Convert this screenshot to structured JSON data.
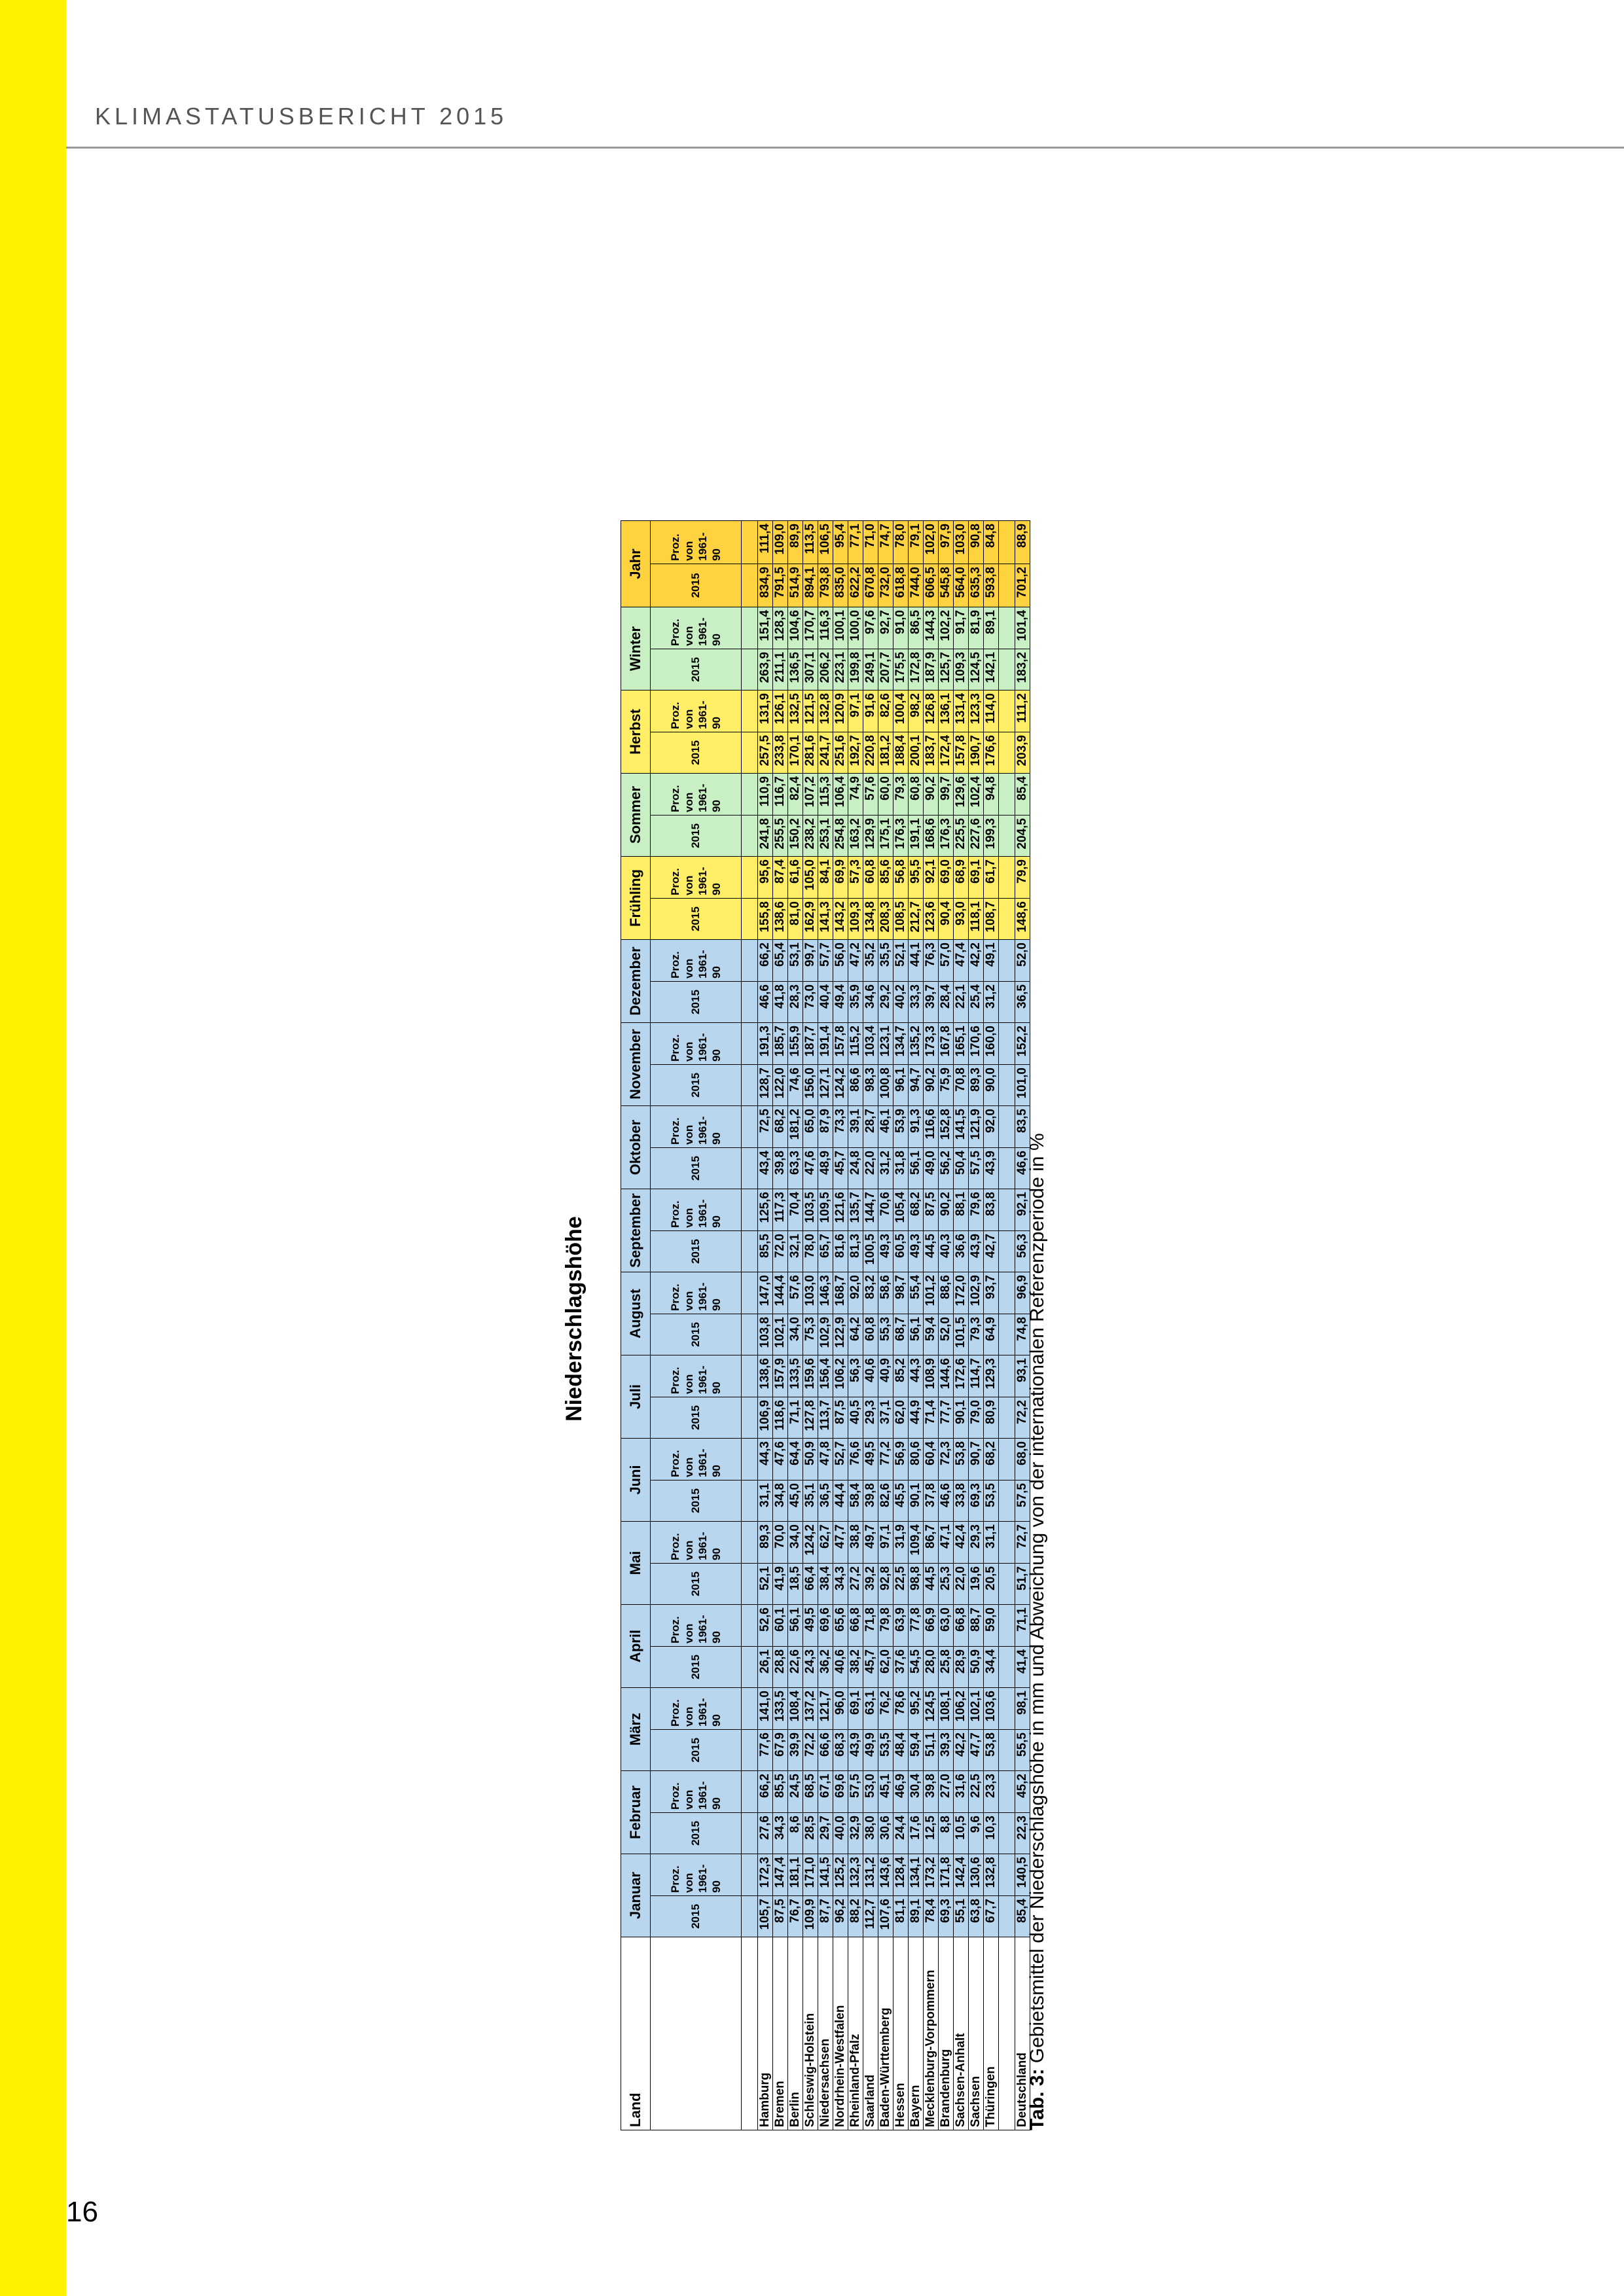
{
  "page": {
    "header": "KLIMASTATUSBERICHT 2015",
    "page_number": "16"
  },
  "title": "Niederschlagshöhe",
  "table": {
    "land_label": "Land",
    "col_2015": "2015",
    "col_proz": "Proz. von 1961-90",
    "months": [
      "Januar",
      "Februar",
      "März",
      "April",
      "Mai",
      "Juni",
      "Juli",
      "August",
      "September",
      "Oktober",
      "November",
      "Dezember"
    ],
    "seasons": [
      "Frühling",
      "Sommer",
      "Herbst",
      "Winter"
    ],
    "year": "Jahr",
    "rows": [
      {
        "land": "Hamburg",
        "values": [
          "105,7",
          "172,3",
          "27,6",
          "66,2",
          "77,6",
          "141,0",
          "26,1",
          "52,6",
          "52,1",
          "89,3",
          "31,1",
          "44,3",
          "106,9",
          "138,6",
          "103,8",
          "147,0",
          "85,5",
          "125,6",
          "43,4",
          "72,5",
          "128,7",
          "191,3",
          "46,6",
          "66,2",
          "155,8",
          "95,6",
          "241,8",
          "110,9",
          "257,5",
          "131,9",
          "263,9",
          "151,4",
          "834,9",
          "111,4"
        ]
      },
      {
        "land": "Bremen",
        "values": [
          "87,5",
          "147,4",
          "34,3",
          "85,5",
          "67,9",
          "133,5",
          "28,8",
          "60,1",
          "41,9",
          "70,0",
          "34,8",
          "47,6",
          "118,6",
          "157,9",
          "102,1",
          "144,4",
          "72,0",
          "117,3",
          "39,8",
          "68,2",
          "122,0",
          "185,7",
          "41,8",
          "65,4",
          "138,6",
          "87,4",
          "255,5",
          "116,7",
          "233,8",
          "126,1",
          "211,1",
          "128,3",
          "791,5",
          "109,0"
        ]
      },
      {
        "land": "Berlin",
        "values": [
          "76,7",
          "181,1",
          "8,6",
          "24,5",
          "39,9",
          "108,4",
          "22,6",
          "56,1",
          "18,5",
          "34,0",
          "45,0",
          "64,4",
          "71,1",
          "133,5",
          "34,0",
          "57,6",
          "32,1",
          "70,4",
          "63,3",
          "181,2",
          "74,6",
          "155,9",
          "28,3",
          "53,1",
          "81,0",
          "61,6",
          "150,2",
          "82,4",
          "170,1",
          "132,5",
          "136,5",
          "104,6",
          "514,9",
          "89,9"
        ]
      },
      {
        "land": "Schleswig-Holstein",
        "values": [
          "109,9",
          "171,0",
          "28,5",
          "68,5",
          "72,2",
          "137,2",
          "24,3",
          "49,5",
          "66,4",
          "124,2",
          "35,1",
          "50,9",
          "127,8",
          "159,6",
          "75,3",
          "103,0",
          "78,0",
          "103,5",
          "47,6",
          "65,0",
          "156,0",
          "187,7",
          "73,0",
          "99,7",
          "162,9",
          "105,0",
          "238,2",
          "107,2",
          "281,6",
          "121,5",
          "307,1",
          "170,7",
          "894,1",
          "113,5"
        ]
      },
      {
        "land": "Niedersachsen",
        "values": [
          "87,7",
          "141,5",
          "29,7",
          "67,1",
          "66,6",
          "121,7",
          "36,2",
          "69,6",
          "38,4",
          "62,7",
          "36,5",
          "47,8",
          "113,7",
          "156,4",
          "102,9",
          "146,3",
          "65,7",
          "109,5",
          "48,9",
          "87,9",
          "127,1",
          "191,4",
          "40,4",
          "57,7",
          "141,3",
          "84,1",
          "253,1",
          "115,3",
          "241,7",
          "132,8",
          "206,2",
          "116,3",
          "793,8",
          "106,5"
        ]
      },
      {
        "land": "Nordrhein-Westfalen",
        "values": [
          "96,2",
          "125,2",
          "40,0",
          "69,6",
          "68,3",
          "96,0",
          "40,6",
          "65,6",
          "34,3",
          "47,7",
          "44,4",
          "52,7",
          "87,5",
          "106,2",
          "122,9",
          "168,7",
          "81,6",
          "121,6",
          "45,7",
          "73,3",
          "124,2",
          "157,8",
          "49,4",
          "56,0",
          "143,2",
          "69,9",
          "254,8",
          "106,4",
          "251,6",
          "120,9",
          "223,1",
          "100,1",
          "835,0",
          "95,4"
        ]
      },
      {
        "land": "Rheinland-Pfalz",
        "values": [
          "88,2",
          "132,3",
          "32,9",
          "57,5",
          "43,9",
          "69,1",
          "38,2",
          "66,8",
          "27,2",
          "38,8",
          "58,4",
          "76,6",
          "40,5",
          "56,3",
          "64,2",
          "92,0",
          "81,3",
          "135,7",
          "24,8",
          "39,1",
          "86,6",
          "115,2",
          "35,9",
          "47,2",
          "109,3",
          "57,3",
          "163,2",
          "74,9",
          "192,7",
          "97,1",
          "199,8",
          "100,0",
          "622,2",
          "77,1"
        ]
      },
      {
        "land": "Saarland",
        "values": [
          "112,7",
          "131,2",
          "38,0",
          "53,0",
          "49,9",
          "63,1",
          "45,7",
          "71,8",
          "39,2",
          "49,7",
          "39,8",
          "49,5",
          "29,3",
          "40,6",
          "60,8",
          "83,2",
          "100,5",
          "144,7",
          "22,0",
          "28,7",
          "98,3",
          "103,4",
          "34,6",
          "35,2",
          "134,8",
          "60,8",
          "129,9",
          "57,6",
          "220,8",
          "91,6",
          "249,1",
          "97,6",
          "670,8",
          "71,0"
        ]
      },
      {
        "land": "Baden-Württemberg",
        "values": [
          "107,6",
          "143,6",
          "30,6",
          "45,1",
          "53,5",
          "76,2",
          "62,0",
          "79,8",
          "92,8",
          "97,1",
          "82,6",
          "77,2",
          "37,1",
          "40,9",
          "55,3",
          "58,6",
          "49,3",
          "70,6",
          "31,2",
          "46,1",
          "100,8",
          "123,1",
          "29,2",
          "35,5",
          "208,3",
          "85,6",
          "175,1",
          "60,0",
          "181,2",
          "82,6",
          "207,7",
          "92,7",
          "732,0",
          "74,7"
        ]
      },
      {
        "land": "Hessen",
        "values": [
          "81,1",
          "128,4",
          "24,4",
          "46,9",
          "48,4",
          "78,6",
          "37,6",
          "63,9",
          "22,5",
          "31,9",
          "45,5",
          "56,9",
          "62,0",
          "85,2",
          "68,7",
          "98,7",
          "60,5",
          "105,4",
          "31,8",
          "53,9",
          "96,1",
          "134,7",
          "40,2",
          "52,1",
          "108,5",
          "56,8",
          "176,3",
          "79,3",
          "188,4",
          "100,4",
          "175,5",
          "91,0",
          "618,8",
          "78,0"
        ]
      },
      {
        "land": "Bayern",
        "values": [
          "89,1",
          "134,1",
          "17,6",
          "30,4",
          "59,4",
          "95,2",
          "54,5",
          "77,8",
          "98,8",
          "109,4",
          "90,1",
          "80,6",
          "44,9",
          "44,3",
          "56,1",
          "55,4",
          "49,3",
          "68,2",
          "56,1",
          "91,3",
          "94,7",
          "135,2",
          "33,3",
          "44,1",
          "212,7",
          "95,5",
          "191,1",
          "60,8",
          "200,1",
          "98,2",
          "172,8",
          "86,5",
          "744,0",
          "79,1"
        ]
      },
      {
        "land": "Mecklenburg-Vorpommern",
        "values": [
          "78,4",
          "173,2",
          "12,5",
          "39,8",
          "51,1",
          "124,5",
          "28,0",
          "66,9",
          "44,5",
          "86,7",
          "37,8",
          "60,4",
          "71,4",
          "108,9",
          "59,4",
          "101,2",
          "44,5",
          "87,5",
          "49,0",
          "116,6",
          "90,2",
          "173,3",
          "39,7",
          "76,3",
          "123,6",
          "92,1",
          "168,6",
          "90,2",
          "183,7",
          "126,8",
          "187,9",
          "144,3",
          "606,5",
          "102,0"
        ]
      },
      {
        "land": "Brandenburg",
        "values": [
          "69,3",
          "171,8",
          "8,8",
          "27,0",
          "39,3",
          "108,1",
          "25,8",
          "63,0",
          "25,3",
          "47,1",
          "46,6",
          "72,3",
          "77,7",
          "144,6",
          "52,0",
          "88,6",
          "40,3",
          "90,2",
          "56,2",
          "152,8",
          "75,9",
          "167,8",
          "28,4",
          "57,0",
          "90,4",
          "69,0",
          "176,3",
          "99,7",
          "172,4",
          "136,1",
          "125,7",
          "102,2",
          "545,8",
          "97,9"
        ]
      },
      {
        "land": "Sachsen-Anhalt",
        "values": [
          "55,1",
          "142,4",
          "10,5",
          "31,6",
          "42,2",
          "106,2",
          "28,9",
          "66,8",
          "22,0",
          "42,4",
          "33,8",
          "53,8",
          "90,1",
          "172,6",
          "101,5",
          "172,0",
          "36,6",
          "88,1",
          "50,4",
          "141,5",
          "70,8",
          "165,1",
          "22,1",
          "47,4",
          "93,0",
          "68,9",
          "225,5",
          "129,6",
          "157,8",
          "131,4",
          "109,3",
          "91,7",
          "564,0",
          "103,0"
        ]
      },
      {
        "land": "Sachsen",
        "values": [
          "63,8",
          "130,6",
          "9,6",
          "22,5",
          "47,7",
          "102,1",
          "50,9",
          "88,7",
          "19,6",
          "29,3",
          "69,3",
          "90,7",
          "79,0",
          "114,7",
          "79,3",
          "102,9",
          "43,9",
          "79,6",
          "57,5",
          "121,9",
          "89,3",
          "170,6",
          "25,4",
          "42,2",
          "118,1",
          "69,1",
          "227,6",
          "102,4",
          "190,7",
          "123,3",
          "124,5",
          "81,9",
          "635,3",
          "90,8"
        ]
      },
      {
        "land": "Thüringen",
        "values": [
          "67,7",
          "132,8",
          "10,3",
          "23,3",
          "53,8",
          "103,6",
          "34,4",
          "59,0",
          "20,5",
          "31,1",
          "53,5",
          "68,2",
          "80,9",
          "129,3",
          "64,9",
          "93,7",
          "42,7",
          "83,8",
          "43,9",
          "92,0",
          "90,0",
          "160,0",
          "31,2",
          "49,1",
          "108,7",
          "61,7",
          "199,3",
          "94,8",
          "176,6",
          "114,0",
          "142,1",
          "89,1",
          "593,8",
          "84,8"
        ]
      }
    ],
    "total": {
      "land": "Deutschland",
      "values": [
        "85,4",
        "140,5",
        "22,3",
        "45,2",
        "55,5",
        "98,1",
        "41,4",
        "71,1",
        "51,7",
        "72,7",
        "57,5",
        "68,0",
        "72,2",
        "93,1",
        "74,8",
        "96,9",
        "56,3",
        "92,1",
        "46,6",
        "83,5",
        "101,0",
        "152,2",
        "36,5",
        "52,0",
        "148,6",
        "79,9",
        "204,5",
        "85,4",
        "203,9",
        "111,2",
        "183,2",
        "101,4",
        "701,2",
        "88,9"
      ]
    }
  },
  "caption": {
    "label": "Tab. 3:",
    "text": " Gebietsmittel der Niederschlagshöhe in mm und Abweichung von der internationalen Referenzperiode in %"
  },
  "colors": {
    "months": "#b8d6ee",
    "spring": "#ffee66",
    "summer": "#c9f0c4",
    "autumn": "#ffee66",
    "winter": "#c9f0c4",
    "year": "#ffd23f",
    "accent_bar": "#fff200"
  }
}
